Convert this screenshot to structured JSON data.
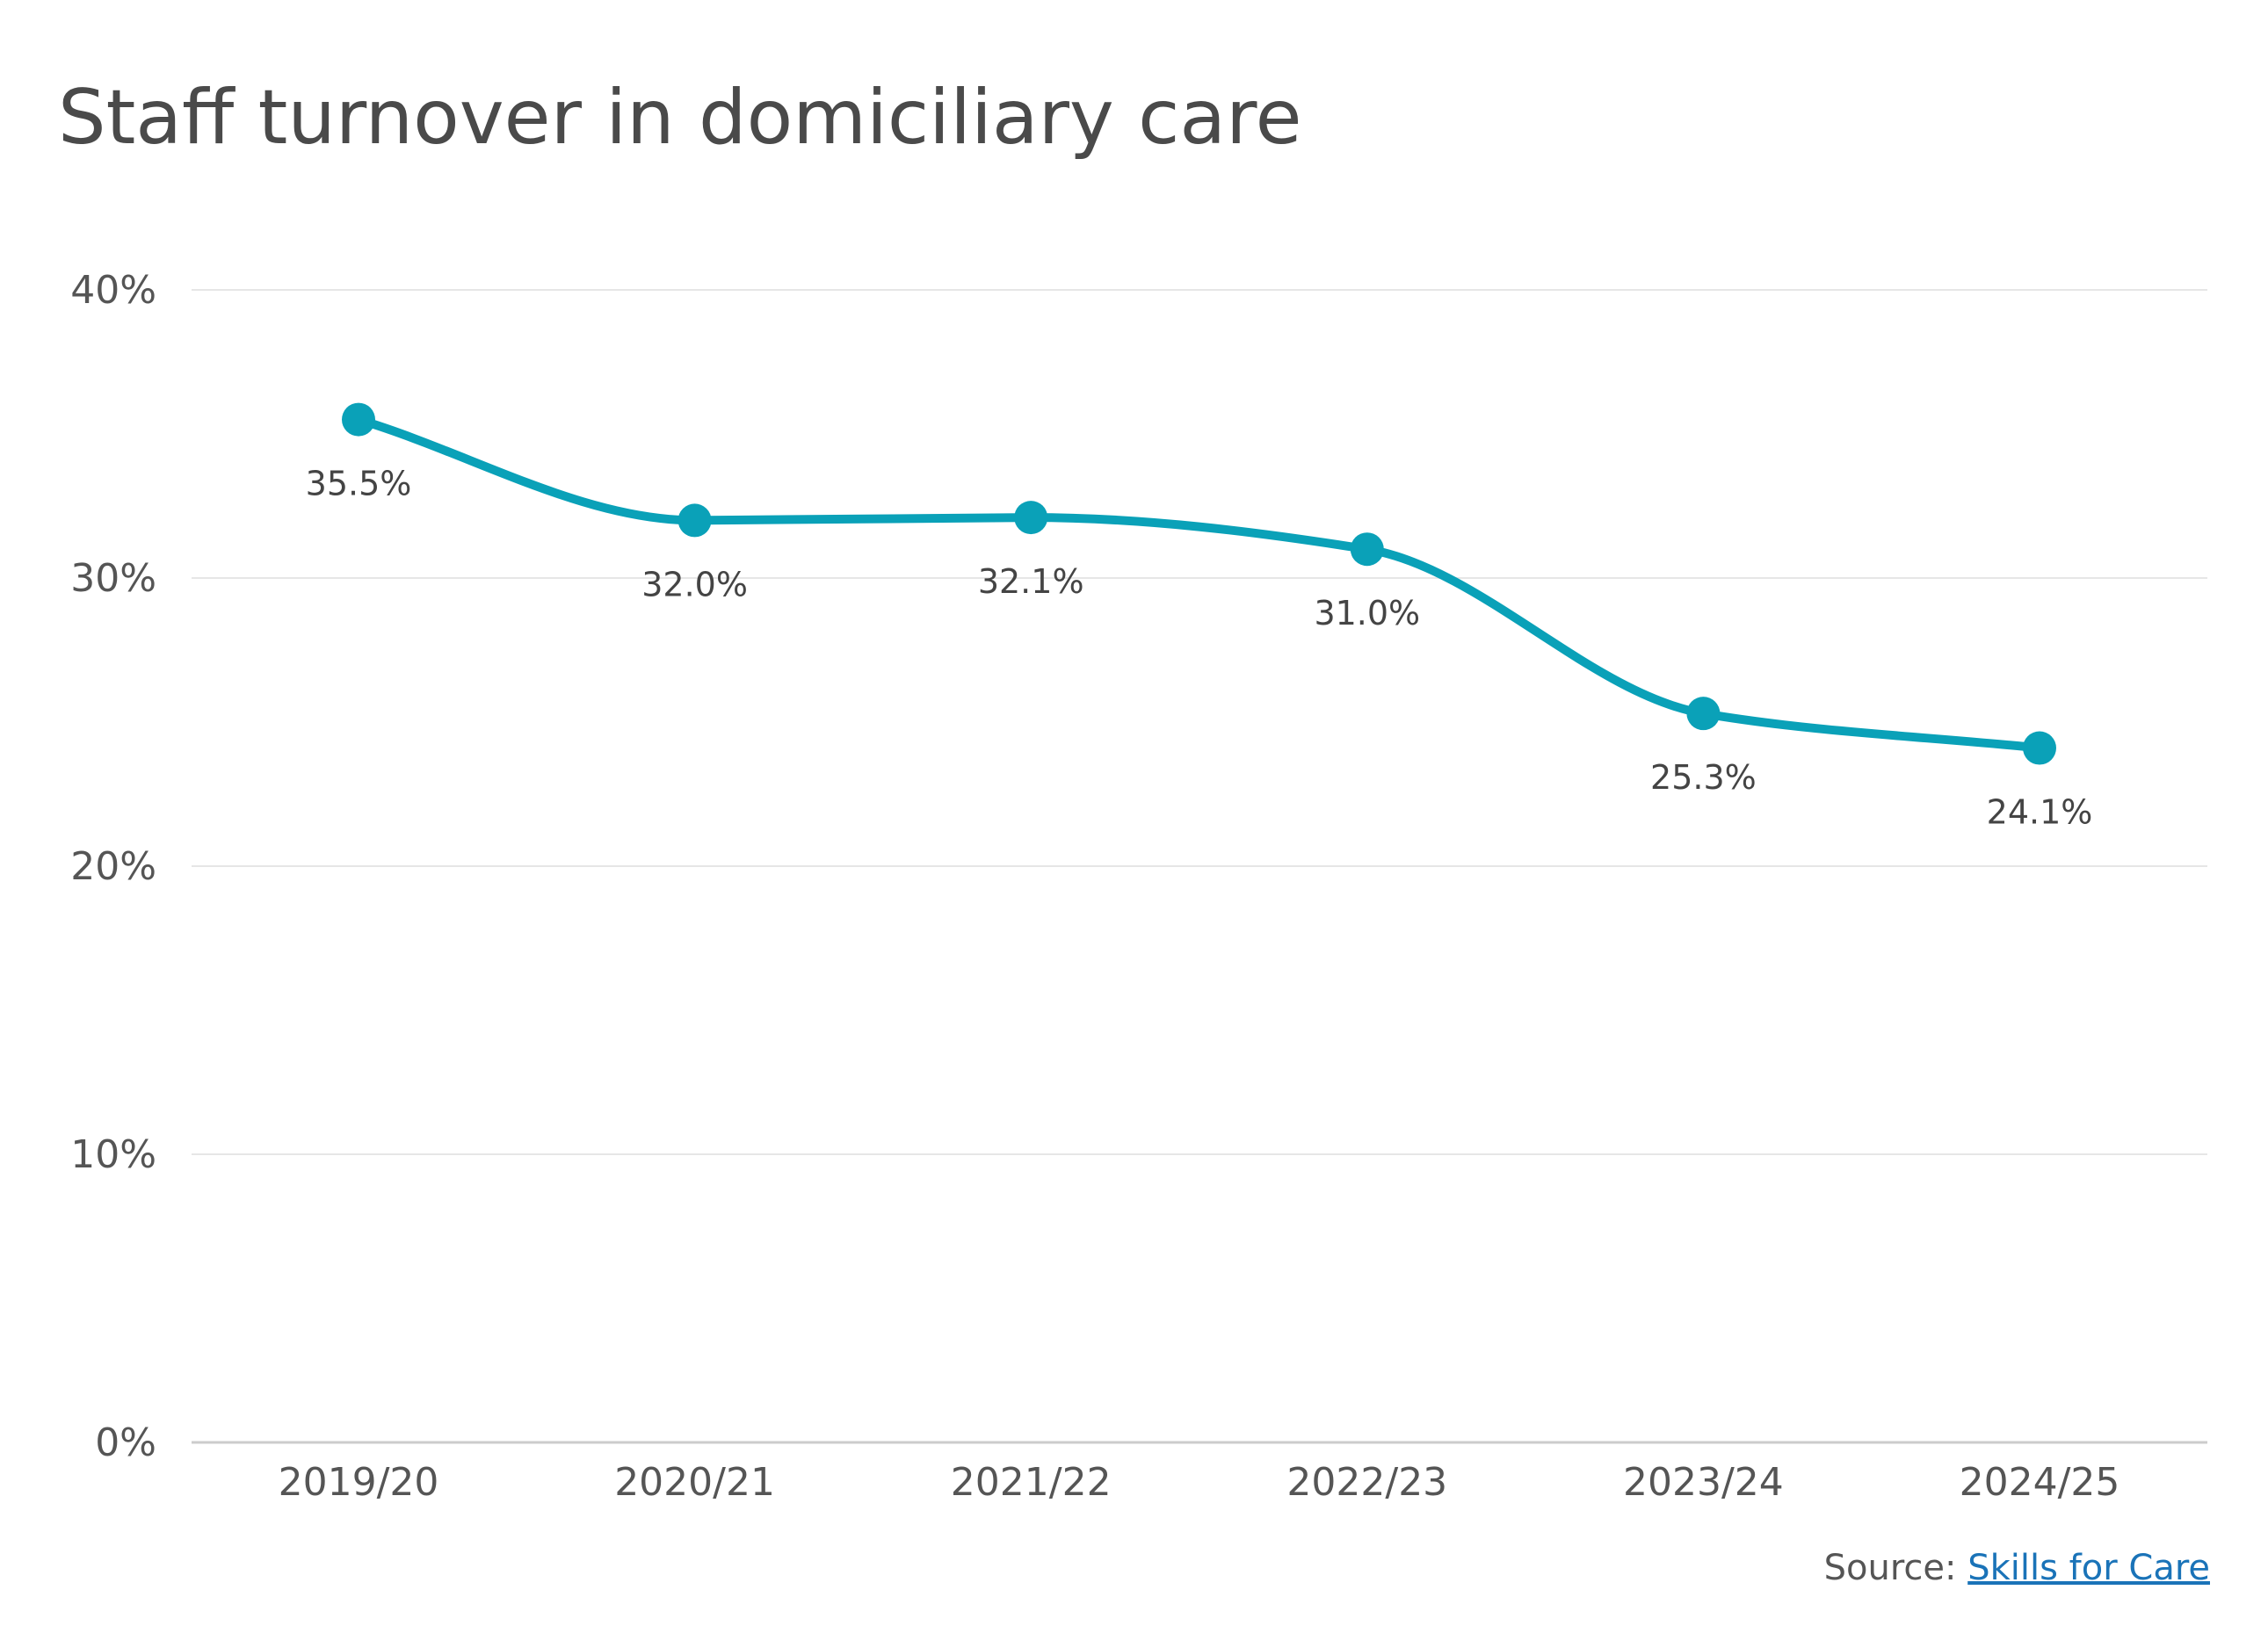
{
  "title": "Staff turnover in domiciliary care",
  "source": {
    "prefix": "Source:",
    "link_text": "Skills for Care"
  },
  "colors": {
    "line": "#0aa1b8",
    "grid": "#e6e6e6",
    "axis": "#cccccc",
    "text": "#555555",
    "link": "#1a73b8"
  },
  "chart_data": {
    "type": "line",
    "categories": [
      "2019/20",
      "2020/21",
      "2021/22",
      "2022/23",
      "2023/24",
      "2024/25"
    ],
    "series": [
      {
        "values": [
          35.5,
          32.0,
          32.1,
          31.0,
          25.3,
          24.1
        ],
        "data_labels": [
          "35.5%",
          "32.0%",
          "32.1%",
          "31.0%",
          "25.3%",
          "24.1%"
        ]
      }
    ],
    "ylim": [
      0,
      40
    ],
    "yticks": [
      0,
      10,
      20,
      30,
      40
    ],
    "ytick_labels": [
      "0%",
      "10%",
      "20%",
      "30%",
      "40%"
    ],
    "grid": true,
    "smooth": true,
    "markers": true
  }
}
